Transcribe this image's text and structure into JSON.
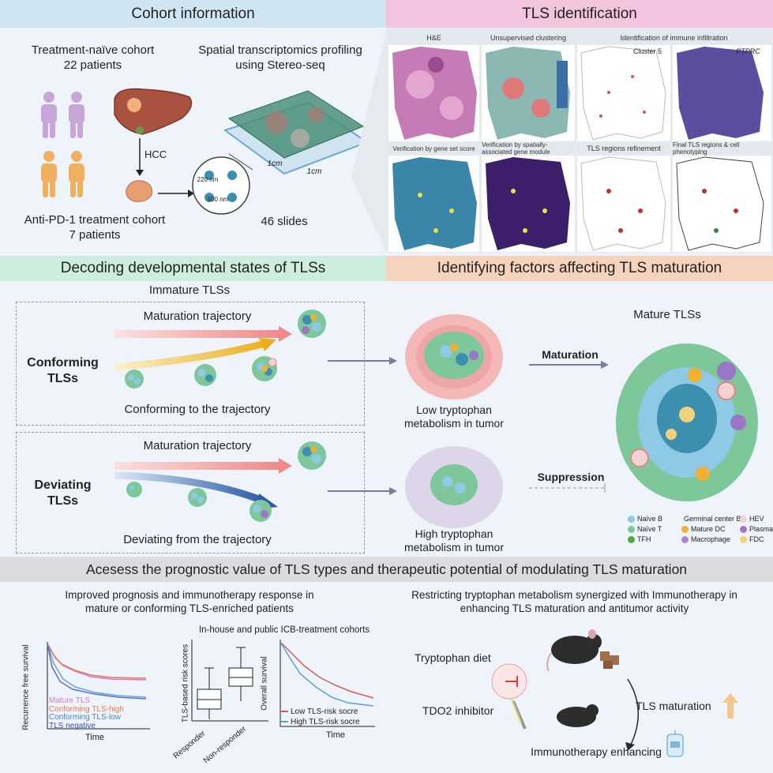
{
  "headers": {
    "cohort": "Cohort information",
    "tls_id": "TLS identification",
    "decoding": "Decoding developmental states of TLSs",
    "factors": "Identifying factors affecting TLS maturation",
    "prognostic": "Acesess the prognostic value of TLS types and therapeutic potential of modulating TLS maturation"
  },
  "cohort": {
    "naive_title": "Treatment-naïve cohort",
    "naive_count": "22 patients",
    "pd1_title": "Anti-PD-1 treatment cohort",
    "pd1_count": "7 patients",
    "hcc": "HCC",
    "st_title": "Spatial transcriptomics profiling",
    "st_subtitle": "using Stereo-seq",
    "slides": "46 slides",
    "nm220": "220 nm",
    "nm500": "500 nm",
    "cm1": "1cm",
    "cm2": "1cm"
  },
  "tls_panels": {
    "he": "H&E",
    "clustering": "Unsupervised clustering",
    "immune": "Identification of immune infiltration",
    "cluster5": "Cluster 5",
    "ptprc": "PTPRC",
    "geneset": "Verification by gene set score",
    "module": "Verification by spatially-associated gene module",
    "refine": "TLS regions refinement",
    "final": "Final TLS regions & cell phenotyping"
  },
  "decoding": {
    "immature": "Immature TLSs",
    "traj1": "Maturation trajectory",
    "traj2": "Maturation trajectory",
    "conforming": "Conforming",
    "conforming2": "TLSs",
    "deviating": "Deviating",
    "deviating2": "TLSs",
    "conf_desc": "Conforming to the trajectory",
    "dev_desc": "Deviating from the trajectory"
  },
  "factors": {
    "low_trp": "Low tryptophan",
    "low_trp2": "metabolism in tumor",
    "high_trp": "High tryptophan",
    "high_trp2": "metabolism in tumor",
    "maturation": "Maturation",
    "suppression": "Suppression",
    "mature_tls": "Mature TLSs"
  },
  "legend": [
    {
      "label": "Naïve B",
      "color": "#8ec9e6"
    },
    {
      "label": "Germinal center B",
      "color": "#3d8fb0"
    },
    {
      "label": "HEV",
      "color": "#f3d3d3"
    },
    {
      "label": "Naïve T",
      "color": "#7dc79a"
    },
    {
      "label": "Mature DC",
      "color": "#f0b030"
    },
    {
      "label": "Plasma",
      "color": "#9b76c6"
    },
    {
      "label": "TFH",
      "color": "#4caa3e"
    },
    {
      "label": "Macrophage",
      "color": "#a889cf"
    },
    {
      "label": "FDC",
      "color": "#f1d17a"
    }
  ],
  "prognosis": {
    "left_title1": "Improved prognosis and immunotherapy response in",
    "left_title2": "mature or conforming TLS-enriched patients",
    "right_title1": "Restricting tryptophan metabolism synergized with Immunotherapy in",
    "right_title2": "enhancing TLS maturation and antitumor activity",
    "icb_title": "In-house and public ICB-treatment cohorts",
    "km1_ylabel": "Recurrence free survival",
    "km1_xlabel": "Time",
    "km1_legend": [
      "Mature TLS",
      "Conforming TLS-high",
      "Conforming TLS-low",
      "TLS negative"
    ],
    "box_ylabel": "TLS-based risk scores",
    "box_x1": "Responder",
    "box_x2": "Non-responder",
    "km2_ylabel": "Overall survival",
    "km2_xlabel": "Time",
    "km2_legend": [
      "Low TLS-risk socre",
      "High TLS-risk socre"
    ],
    "trp_diet": "Tryptophan diet",
    "tdo2": "TDO2 inhibitor",
    "tls_mat": "TLS maturation",
    "immuno": "Immunotherapy enhancing"
  },
  "colors": {
    "cohort_hdr": "#cfe6f2",
    "tls_hdr": "#f2c4e0",
    "decoding_hdr": "#cdeedd",
    "factors_hdr": "#f6d3bd",
    "prognostic_hdr": "#dcdcde",
    "km_mature": "#d07ad0",
    "km_conf_high": "#e07a4a",
    "km_conf_low": "#6aa5d8",
    "km_neg": "#5a6fd0",
    "km_low_risk": "#d85a5a",
    "km_high_risk": "#5aa0d8"
  }
}
